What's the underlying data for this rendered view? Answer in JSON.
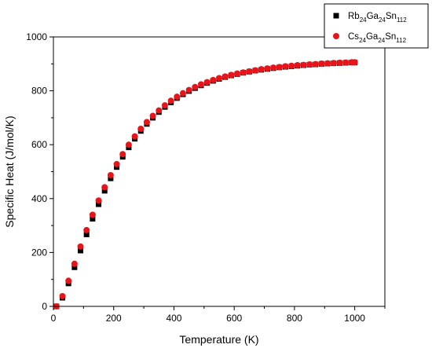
{
  "chart_data": {
    "type": "scatter",
    "title": "",
    "xlabel": "Temperature (K)",
    "ylabel": "Specific Heat (J/mol/K)",
    "xlim": [
      0,
      1100
    ],
    "ylim": [
      0,
      1000
    ],
    "xticks": [
      0,
      200,
      400,
      600,
      800,
      1000
    ],
    "yticks": [
      0,
      200,
      400,
      600,
      800,
      1000
    ],
    "legend_position": "top-right",
    "legend": [
      {
        "series": "rb",
        "base_parts": [
          "Rb",
          "Ga",
          "Sn"
        ],
        "subs": [
          "24",
          "24",
          "112"
        ]
      },
      {
        "series": "cs",
        "base_parts": [
          "Cs",
          "Ga",
          "Sn"
        ],
        "subs": [
          "24",
          "24",
          "112"
        ]
      }
    ],
    "series": [
      {
        "key": "rb",
        "marker": "square",
        "color": "#000000",
        "x": [
          10,
          30,
          50,
          70,
          90,
          110,
          130,
          150,
          170,
          190,
          210,
          230,
          250,
          270,
          290,
          310,
          330,
          350,
          370,
          390,
          410,
          430,
          450,
          470,
          490,
          510,
          530,
          550,
          570,
          590,
          610,
          630,
          650,
          670,
          690,
          710,
          730,
          750,
          770,
          790,
          810,
          830,
          850,
          870,
          890,
          910,
          930,
          950,
          970,
          990,
          1000
        ],
        "y": [
          0,
          32,
          85,
          145,
          207,
          267,
          325,
          379,
          429,
          475,
          517,
          555,
          590,
          622,
          651,
          677,
          700,
          721,
          740,
          757,
          773,
          787,
          799,
          810,
          820,
          829,
          837,
          844,
          851,
          857,
          862,
          867,
          871,
          875,
          878,
          881,
          884,
          887,
          889,
          891,
          893,
          895,
          897,
          898,
          900,
          901,
          902,
          903,
          904,
          905,
          905
        ]
      },
      {
        "key": "cs",
        "marker": "circle",
        "color": "#e8141a",
        "x": [
          10,
          30,
          50,
          70,
          90,
          110,
          130,
          150,
          170,
          190,
          210,
          230,
          250,
          270,
          290,
          310,
          330,
          350,
          370,
          390,
          410,
          430,
          450,
          470,
          490,
          510,
          530,
          550,
          570,
          590,
          610,
          630,
          650,
          670,
          690,
          710,
          730,
          750,
          770,
          790,
          810,
          830,
          850,
          870,
          890,
          910,
          930,
          950,
          970,
          990,
          1000
        ],
        "y": [
          0,
          38,
          95,
          158,
          222,
          283,
          340,
          393,
          442,
          487,
          528,
          565,
          600,
          631,
          659,
          684,
          707,
          727,
          746,
          763,
          778,
          791,
          803,
          814,
          824,
          832,
          840,
          847,
          853,
          859,
          864,
          868,
          872,
          876,
          880,
          883,
          886,
          888,
          891,
          893,
          895,
          896,
          898,
          899,
          901,
          902,
          903,
          904,
          905,
          906,
          906
        ]
      }
    ]
  }
}
